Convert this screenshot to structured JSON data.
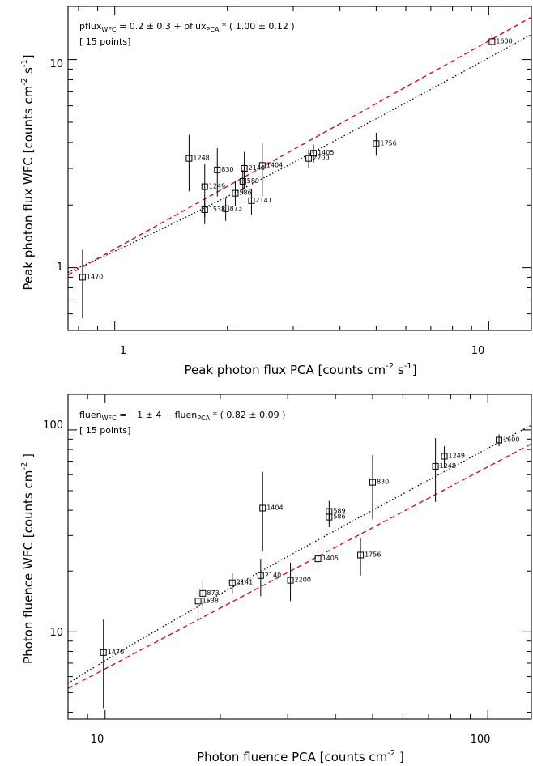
{
  "chart_data": [
    {
      "type": "scatter",
      "xscale": "log",
      "yscale": "log",
      "xlim": [
        0.75,
        13.0
      ],
      "ylim": [
        0.5,
        18.0
      ],
      "xlabel": "Peak photon flux PCA [counts cm",
      "xlabel_exp": "-2",
      "xlabel_mid": " s",
      "xlabel_exp2": "-1",
      "xlabel_end": "]",
      "ylabel": "Peak photon flux WFC [counts cm",
      "ylabel_exp": "-2",
      "ylabel_mid": " s",
      "ylabel_exp2": "-1",
      "ylabel_end": "]",
      "major_ticks_x": [
        1,
        10
      ],
      "major_ticks_y": [
        1,
        10
      ],
      "equation": {
        "a": "pflux",
        "a_sub": "WFC",
        "b": " = 0.2 ± 0.3 + pflux",
        "b_sub": "PCA",
        "c": " * ( 1.00 ± 0.12 )"
      },
      "points_note": "[ 15 points]",
      "dotted_line": {
        "intercept": 0.2,
        "slope": 1.0
      },
      "dashed_line": {
        "intercept": 0.0,
        "slope": 1.0,
        "offset_factor": 1.23
      },
      "points": [
        {
          "label": "1470",
          "x": 0.82,
          "y": 0.9,
          "ylo": 0.57,
          "yhi": 1.22
        },
        {
          "label": "1248",
          "x": 1.58,
          "y": 3.35,
          "ylo": 2.33,
          "yhi": 4.35
        },
        {
          "label": "1249",
          "x": 1.74,
          "y": 2.45,
          "ylo": 1.75,
          "yhi": 3.15
        },
        {
          "label": "1538",
          "x": 1.74,
          "y": 1.9,
          "ylo": 1.62,
          "yhi": 2.18
        },
        {
          "label": "830",
          "x": 1.88,
          "y": 2.95,
          "ylo": 2.2,
          "yhi": 3.75
        },
        {
          "label": "873",
          "x": 1.98,
          "y": 1.92,
          "ylo": 1.68,
          "yhi": 2.18
        },
        {
          "label": "586",
          "x": 2.1,
          "y": 2.28,
          "ylo": 1.98,
          "yhi": 2.6
        },
        {
          "label": "589",
          "x": 2.2,
          "y": 2.6,
          "ylo": 2.25,
          "yhi": 2.95
        },
        {
          "label": "2140",
          "x": 2.22,
          "y": 3.0,
          "ylo": 2.4,
          "yhi": 3.6
        },
        {
          "label": "2141",
          "x": 2.32,
          "y": 2.1,
          "ylo": 1.8,
          "yhi": 2.4
        },
        {
          "label": "1404",
          "x": 2.48,
          "y": 3.1,
          "ylo": 2.2,
          "yhi": 4.0
        },
        {
          "label": "2200",
          "x": 3.3,
          "y": 3.35,
          "ylo": 3.0,
          "yhi": 3.7
        },
        {
          "label": "1405",
          "x": 3.4,
          "y": 3.55,
          "ylo": 3.2,
          "yhi": 3.9
        },
        {
          "label": "1756",
          "x": 5.0,
          "y": 3.95,
          "ylo": 3.45,
          "yhi": 4.45
        },
        {
          "label": "1600",
          "x": 10.2,
          "y": 12.2,
          "ylo": 11.2,
          "yhi": 13.3
        }
      ]
    },
    {
      "type": "scatter",
      "xscale": "log",
      "yscale": "log",
      "xlim": [
        8.0,
        130.0
      ],
      "ylim": [
        3.7,
        150.0
      ],
      "xlabel": "Photon fluence PCA [counts cm",
      "xlabel_exp": "-2",
      "xlabel_end": " ]",
      "ylabel": "Photon fluence WFC [counts cm",
      "ylabel_exp": "-2",
      "ylabel_end": " ]",
      "major_ticks_x": [
        10,
        100
      ],
      "major_ticks_y": [
        10,
        100
      ],
      "equation": {
        "a": "fluen",
        "a_sub": "WFC",
        "b": " = −1 ± 4 + fluen",
        "b_sub": "PCA",
        "c": " * ( 0.82 ± 0.09 )"
      },
      "points_note": "[ 15 points]",
      "dotted_line": {
        "intercept": -1.0,
        "slope": 0.82
      },
      "dashed_line": {
        "intercept": 0.0,
        "slope": 0.82,
        "offset_factor": 0.8
      },
      "points": [
        {
          "label": "1470",
          "x": 9.9,
          "y": 7.9,
          "ylo": 4.2,
          "yhi": 11.5
        },
        {
          "label": "1538",
          "x": 17.5,
          "y": 14.2,
          "ylo": 11.8,
          "yhi": 16.5
        },
        {
          "label": "873",
          "x": 18.0,
          "y": 15.5,
          "ylo": 12.8,
          "yhi": 18.2
        },
        {
          "label": "2141",
          "x": 21.5,
          "y": 17.5,
          "ylo": 15.5,
          "yhi": 19.5
        },
        {
          "label": "2140",
          "x": 25.5,
          "y": 19.0,
          "ylo": 15.0,
          "yhi": 23.0
        },
        {
          "label": "1404",
          "x": 25.8,
          "y": 41.0,
          "ylo": 25.0,
          "yhi": 62.0
        },
        {
          "label": "2200",
          "x": 30.5,
          "y": 18.0,
          "ylo": 14.2,
          "yhi": 22.0
        },
        {
          "label": "1405",
          "x": 36.0,
          "y": 23.0,
          "ylo": 20.5,
          "yhi": 25.5
        },
        {
          "label": "586",
          "x": 38.5,
          "y": 37.0,
          "ylo": 33.0,
          "yhi": 41.0
        },
        {
          "label": "589",
          "x": 38.5,
          "y": 39.5,
          "ylo": 35.0,
          "yhi": 44.5
        },
        {
          "label": "1756",
          "x": 46.5,
          "y": 24.0,
          "ylo": 19.0,
          "yhi": 29.0
        },
        {
          "label": "830",
          "x": 50.0,
          "y": 55.0,
          "ylo": 36.0,
          "yhi": 75.0
        },
        {
          "label": "1248",
          "x": 73.0,
          "y": 66.0,
          "ylo": 44.0,
          "yhi": 91.0
        },
        {
          "label": "1249",
          "x": 77.0,
          "y": 74.0,
          "ylo": 65.0,
          "yhi": 83.0
        },
        {
          "label": "1600",
          "x": 107.0,
          "y": 89.0,
          "ylo": 83.0,
          "yhi": 95.0
        }
      ]
    }
  ]
}
